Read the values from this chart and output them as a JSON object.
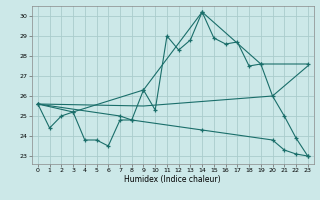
{
  "xlabel": "Humidex (Indice chaleur)",
  "xlim": [
    -0.5,
    23.5
  ],
  "ylim": [
    22.6,
    30.5
  ],
  "yticks": [
    23,
    24,
    25,
    26,
    27,
    28,
    29,
    30
  ],
  "xticks": [
    0,
    1,
    2,
    3,
    4,
    5,
    6,
    7,
    8,
    9,
    10,
    11,
    12,
    13,
    14,
    15,
    16,
    17,
    18,
    19,
    20,
    21,
    22,
    23
  ],
  "bg_color": "#cce8e8",
  "grid_color": "#aacccc",
  "line_color": "#1a6e6a",
  "lines": [
    {
      "x": [
        0,
        1,
        2,
        3,
        4,
        5,
        6,
        7,
        8,
        9,
        10,
        11,
        12,
        13,
        14,
        15,
        16,
        17,
        18,
        19,
        20,
        21,
        22,
        23
      ],
      "y": [
        25.6,
        24.4,
        25.0,
        25.2,
        23.8,
        23.8,
        23.5,
        24.8,
        24.8,
        26.3,
        25.3,
        29.0,
        28.3,
        28.8,
        30.2,
        28.9,
        28.6,
        28.7,
        27.5,
        27.6,
        26.0,
        25.0,
        23.9,
        23.0
      ],
      "has_markers": true
    },
    {
      "x": [
        0,
        3,
        9,
        14,
        19,
        23
      ],
      "y": [
        25.6,
        25.2,
        26.3,
        30.2,
        27.6,
        27.6
      ],
      "has_markers": true
    },
    {
      "x": [
        0,
        9,
        20,
        23
      ],
      "y": [
        25.6,
        25.5,
        26.0,
        27.5
      ],
      "has_markers": false
    },
    {
      "x": [
        0,
        7,
        8,
        14,
        20,
        21,
        22,
        23
      ],
      "y": [
        25.6,
        25.0,
        24.8,
        24.3,
        23.8,
        23.3,
        23.1,
        23.0
      ],
      "has_markers": true
    }
  ]
}
